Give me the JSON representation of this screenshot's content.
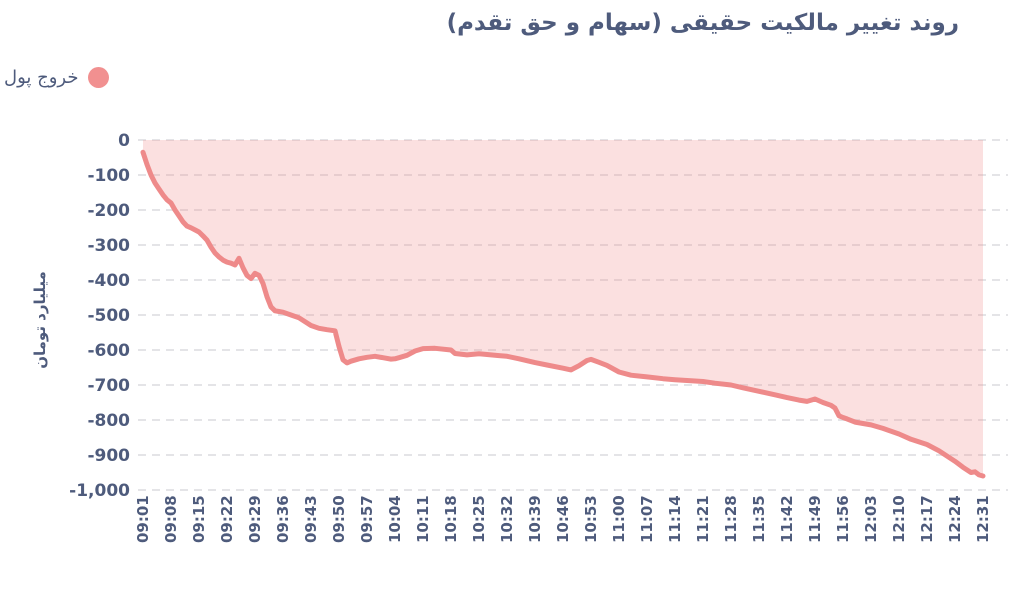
{
  "title": "روند تغییر مالکیت حقیقی (سهام و حق تقدم)",
  "legend": {
    "label": "خروج پول",
    "dot_color": "#f19090"
  },
  "colors": {
    "text": "#4e5b7c",
    "line": "#ee8a8a",
    "fill": "rgba(240,144,144,0.28)",
    "grid": "#e4e4e7",
    "background": "#ffffff"
  },
  "chart_data": {
    "type": "area",
    "title": "روند تغییر مالکیت حقیقی (سهام و حق تقدم)",
    "xlabel": "",
    "ylabel": "میلیارد تومان",
    "legend_position": "top-left",
    "grid": "dashed-horizontal",
    "ylim": [
      -1000,
      0
    ],
    "ytick_step": 100,
    "ytick_labels": [
      "0",
      "-100",
      "-200",
      "-300",
      "-400",
      "-500",
      "-600",
      "-700",
      "-800",
      "-900",
      "-1,000"
    ],
    "categories": [
      "09:01",
      "09:08",
      "09:15",
      "09:22",
      "09:29",
      "09:36",
      "09:43",
      "09:50",
      "09:57",
      "10:04",
      "10:11",
      "10:18",
      "10:25",
      "10:32",
      "10:39",
      "10:46",
      "10:53",
      "11:00",
      "11:07",
      "11:14",
      "11:21",
      "11:28",
      "11:35",
      "11:42",
      "11:49",
      "11:56",
      "12:03",
      "12:10",
      "12:17",
      "12:24",
      "12:31"
    ],
    "x_minutes_span": 210,
    "series": [
      {
        "name": "خروج پول",
        "points": [
          [
            0,
            -35
          ],
          [
            1,
            -70
          ],
          [
            2,
            -100
          ],
          [
            3,
            -123
          ],
          [
            4,
            -140
          ],
          [
            5,
            -157
          ],
          [
            6,
            -171
          ],
          [
            7,
            -180
          ],
          [
            8,
            -200
          ],
          [
            9,
            -217
          ],
          [
            10,
            -234
          ],
          [
            11,
            -246
          ],
          [
            12,
            -251
          ],
          [
            13,
            -257
          ],
          [
            14,
            -263
          ],
          [
            15,
            -274
          ],
          [
            16,
            -286
          ],
          [
            17,
            -306
          ],
          [
            18,
            -323
          ],
          [
            19,
            -334
          ],
          [
            20,
            -343
          ],
          [
            21,
            -349
          ],
          [
            22,
            -352
          ],
          [
            23,
            -357
          ],
          [
            24,
            -338
          ],
          [
            25,
            -365
          ],
          [
            26,
            -387
          ],
          [
            27,
            -396
          ],
          [
            28,
            -381
          ],
          [
            29,
            -387
          ],
          [
            30,
            -410
          ],
          [
            31,
            -448
          ],
          [
            32,
            -477
          ],
          [
            33,
            -488
          ],
          [
            34,
            -490
          ],
          [
            35,
            -492
          ],
          [
            37,
            -500
          ],
          [
            39,
            -508
          ],
          [
            42,
            -530
          ],
          [
            44,
            -538
          ],
          [
            46,
            -542
          ],
          [
            48,
            -545
          ],
          [
            49,
            -590
          ],
          [
            50,
            -628
          ],
          [
            51,
            -637
          ],
          [
            52,
            -632
          ],
          [
            54,
            -625
          ],
          [
            56,
            -621
          ],
          [
            58,
            -618
          ],
          [
            60,
            -622
          ],
          [
            62,
            -626
          ],
          [
            63,
            -625
          ],
          [
            64,
            -622
          ],
          [
            66,
            -615
          ],
          [
            68,
            -603
          ],
          [
            70,
            -596
          ],
          [
            73,
            -595
          ],
          [
            77,
            -600
          ],
          [
            78,
            -610
          ],
          [
            81,
            -614
          ],
          [
            84,
            -611
          ],
          [
            87,
            -614
          ],
          [
            89,
            -616
          ],
          [
            91,
            -618
          ],
          [
            94,
            -625
          ],
          [
            98,
            -636
          ],
          [
            101,
            -643
          ],
          [
            105,
            -652
          ],
          [
            107,
            -657
          ],
          [
            109,
            -645
          ],
          [
            111,
            -630
          ],
          [
            112,
            -627
          ],
          [
            114,
            -635
          ],
          [
            116,
            -644
          ],
          [
            119,
            -663
          ],
          [
            122,
            -672
          ],
          [
            126,
            -677
          ],
          [
            130,
            -682
          ],
          [
            133,
            -685
          ],
          [
            137,
            -688
          ],
          [
            140,
            -690
          ],
          [
            143,
            -695
          ],
          [
            147,
            -700
          ],
          [
            150,
            -708
          ],
          [
            154,
            -718
          ],
          [
            158,
            -728
          ],
          [
            161,
            -736
          ],
          [
            164,
            -743
          ],
          [
            166,
            -747
          ],
          [
            168,
            -740
          ],
          [
            170,
            -750
          ],
          [
            172,
            -758
          ],
          [
            173,
            -766
          ],
          [
            174,
            -788
          ],
          [
            175,
            -793
          ],
          [
            176,
            -797
          ],
          [
            178,
            -806
          ],
          [
            182,
            -814
          ],
          [
            185,
            -824
          ],
          [
            189,
            -840
          ],
          [
            192,
            -855
          ],
          [
            196,
            -870
          ],
          [
            199,
            -888
          ],
          [
            203,
            -918
          ],
          [
            205,
            -935
          ],
          [
            207,
            -950
          ],
          [
            208,
            -948
          ],
          [
            209,
            -957
          ],
          [
            210,
            -960
          ]
        ]
      }
    ]
  }
}
